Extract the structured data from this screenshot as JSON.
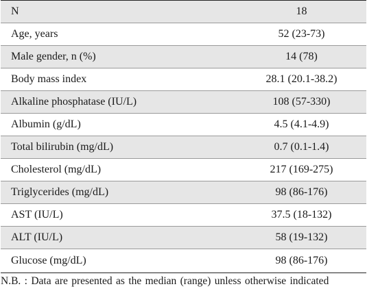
{
  "table": {
    "rows": [
      {
        "label": "N",
        "value": "18"
      },
      {
        "label": "Age, years",
        "value": "52 (23-73)"
      },
      {
        "label": "Male gender, n (%)",
        "value": "14 (78)"
      },
      {
        "label": "Body mass index",
        "value": "28.1 (20.1-38.2)"
      },
      {
        "label": "Alkaline phosphatase (IU/L)",
        "value": "108 (57-330)"
      },
      {
        "label": "Albumin (g/dL)",
        "value": "4.5 (4.1-4.9)"
      },
      {
        "label": "Total bilirubin (mg/dL)",
        "value": "0.7 (0.1-1.4)"
      },
      {
        "label": "Cholesterol (mg/dL)",
        "value": "217 (169-275)"
      },
      {
        "label": "Triglycerides (mg/dL)",
        "value": "98 (86-176)"
      },
      {
        "label": "AST (IU/L)",
        "value": "37.5 (18-132)"
      },
      {
        "label": "ALT (IU/L)",
        "value": "58 (19-132)"
      },
      {
        "label": "Glucose (mg/dL)",
        "value": "98 (86-176)"
      }
    ],
    "note": "N.B. : Data are presented as the median (range) unless otherwise indicated"
  },
  "colors": {
    "shaded_row": "#e6e6e6",
    "text": "#1a1a1a",
    "rule": "#9a9a9a"
  }
}
